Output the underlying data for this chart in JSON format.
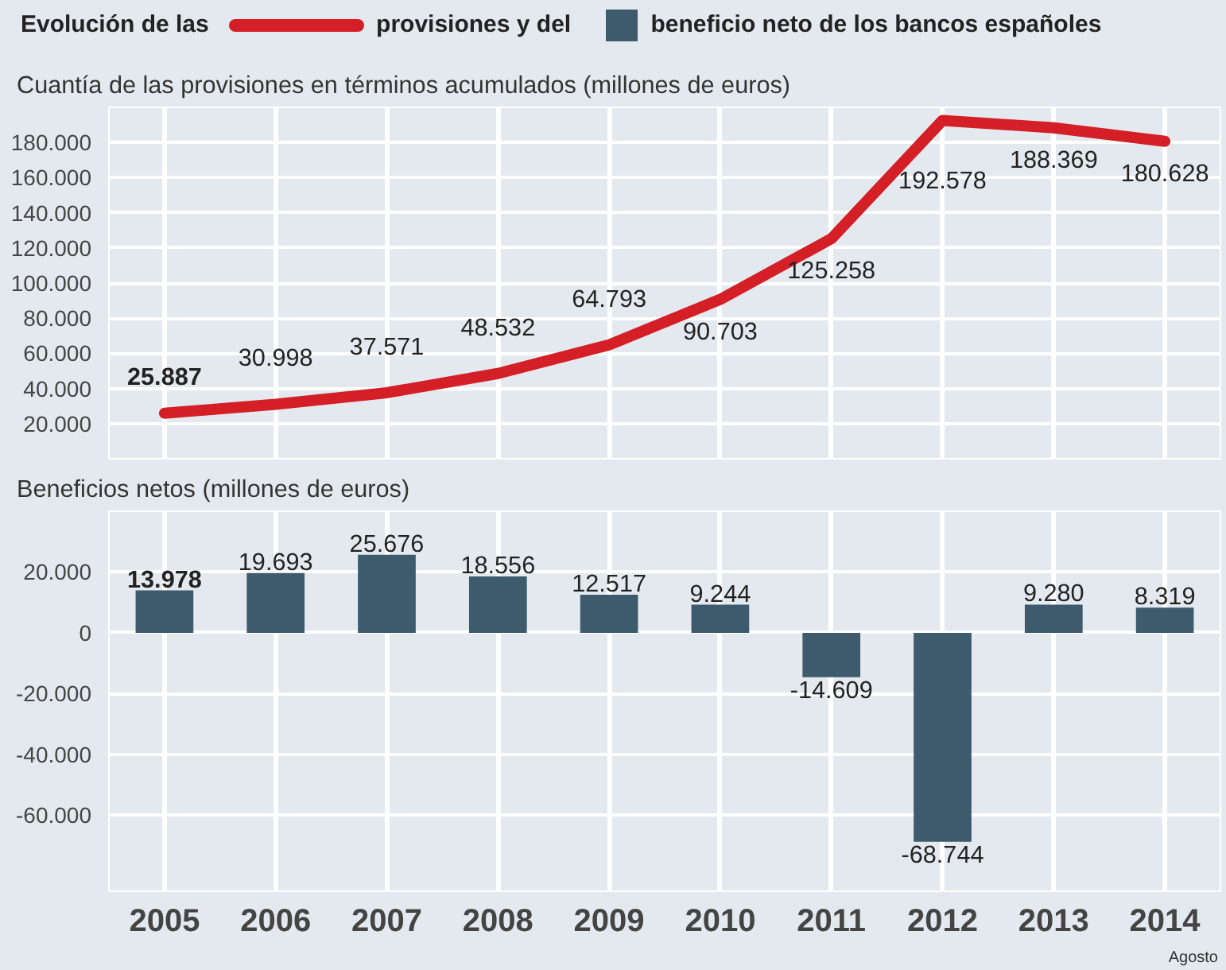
{
  "chart_data": [
    {
      "type": "line",
      "title": "Evolución de las",
      "subtitle": "Cuantía de las provisiones en términos acumulados (millones de euros)",
      "categories": [
        "2005",
        "2006",
        "2007",
        "2008",
        "2009",
        "2010",
        "2011",
        "2012",
        "2013",
        "2014"
      ],
      "series": [
        {
          "name": "provisiones y del",
          "color": "#d41f26",
          "values": [
            25887,
            30998,
            37571,
            48532,
            64793,
            90703,
            125258,
            192578,
            188369,
            180628
          ],
          "value_labels": [
            "25.887",
            "30.998",
            "37.571",
            "48.532",
            "64.793",
            "90.703",
            "125.258",
            "192.578",
            "188.369",
            "180.628"
          ]
        }
      ],
      "ylim": [
        0,
        200000
      ],
      "yticks": [
        {
          "value": 20000,
          "label": "20.000"
        },
        {
          "value": 40000,
          "label": "40.000"
        },
        {
          "value": 60000,
          "label": "60.000"
        },
        {
          "value": 80000,
          "label": "80.000"
        },
        {
          "value": 100000,
          "label": "100.000"
        },
        {
          "value": 120000,
          "label": "120.000"
        },
        {
          "value": 140000,
          "label": "140.000"
        },
        {
          "value": 160000,
          "label": "160.000"
        },
        {
          "value": 180000,
          "label": "180.000"
        }
      ],
      "grid": true,
      "legend": "top",
      "tick_labels": "y",
      "marker": "none",
      "line_style": "solid"
    },
    {
      "type": "bar",
      "subtitle": "Beneficios netos (millones de euros)",
      "categories": [
        "2005",
        "2006",
        "2007",
        "2008",
        "2009",
        "2010",
        "2011",
        "2012",
        "2013",
        "2014"
      ],
      "series": [
        {
          "name": "beneficio neto de los bancos españoles",
          "color": "#3e5b6d",
          "values": [
            13978,
            19693,
            25676,
            18556,
            12517,
            9244,
            -14609,
            -68744,
            9280,
            8319
          ],
          "value_labels": [
            "13.978",
            "19.693",
            "25.676",
            "18.556",
            "12.517",
            "9.244",
            "-14.609",
            "-68.744",
            "9.280",
            "8.319"
          ]
        }
      ],
      "ylim": [
        -85000,
        40000
      ],
      "yticks": [
        {
          "value": 20000,
          "label": "20.000"
        },
        0,
        {
          "value": -20000,
          "label": "-20.000"
        },
        {
          "value": -40000,
          "label": "-40.000"
        },
        {
          "value": -60000,
          "label": "-60.000"
        }
      ],
      "grid": true,
      "legend": "top",
      "annotations": [
        "Agosto"
      ]
    }
  ]
}
